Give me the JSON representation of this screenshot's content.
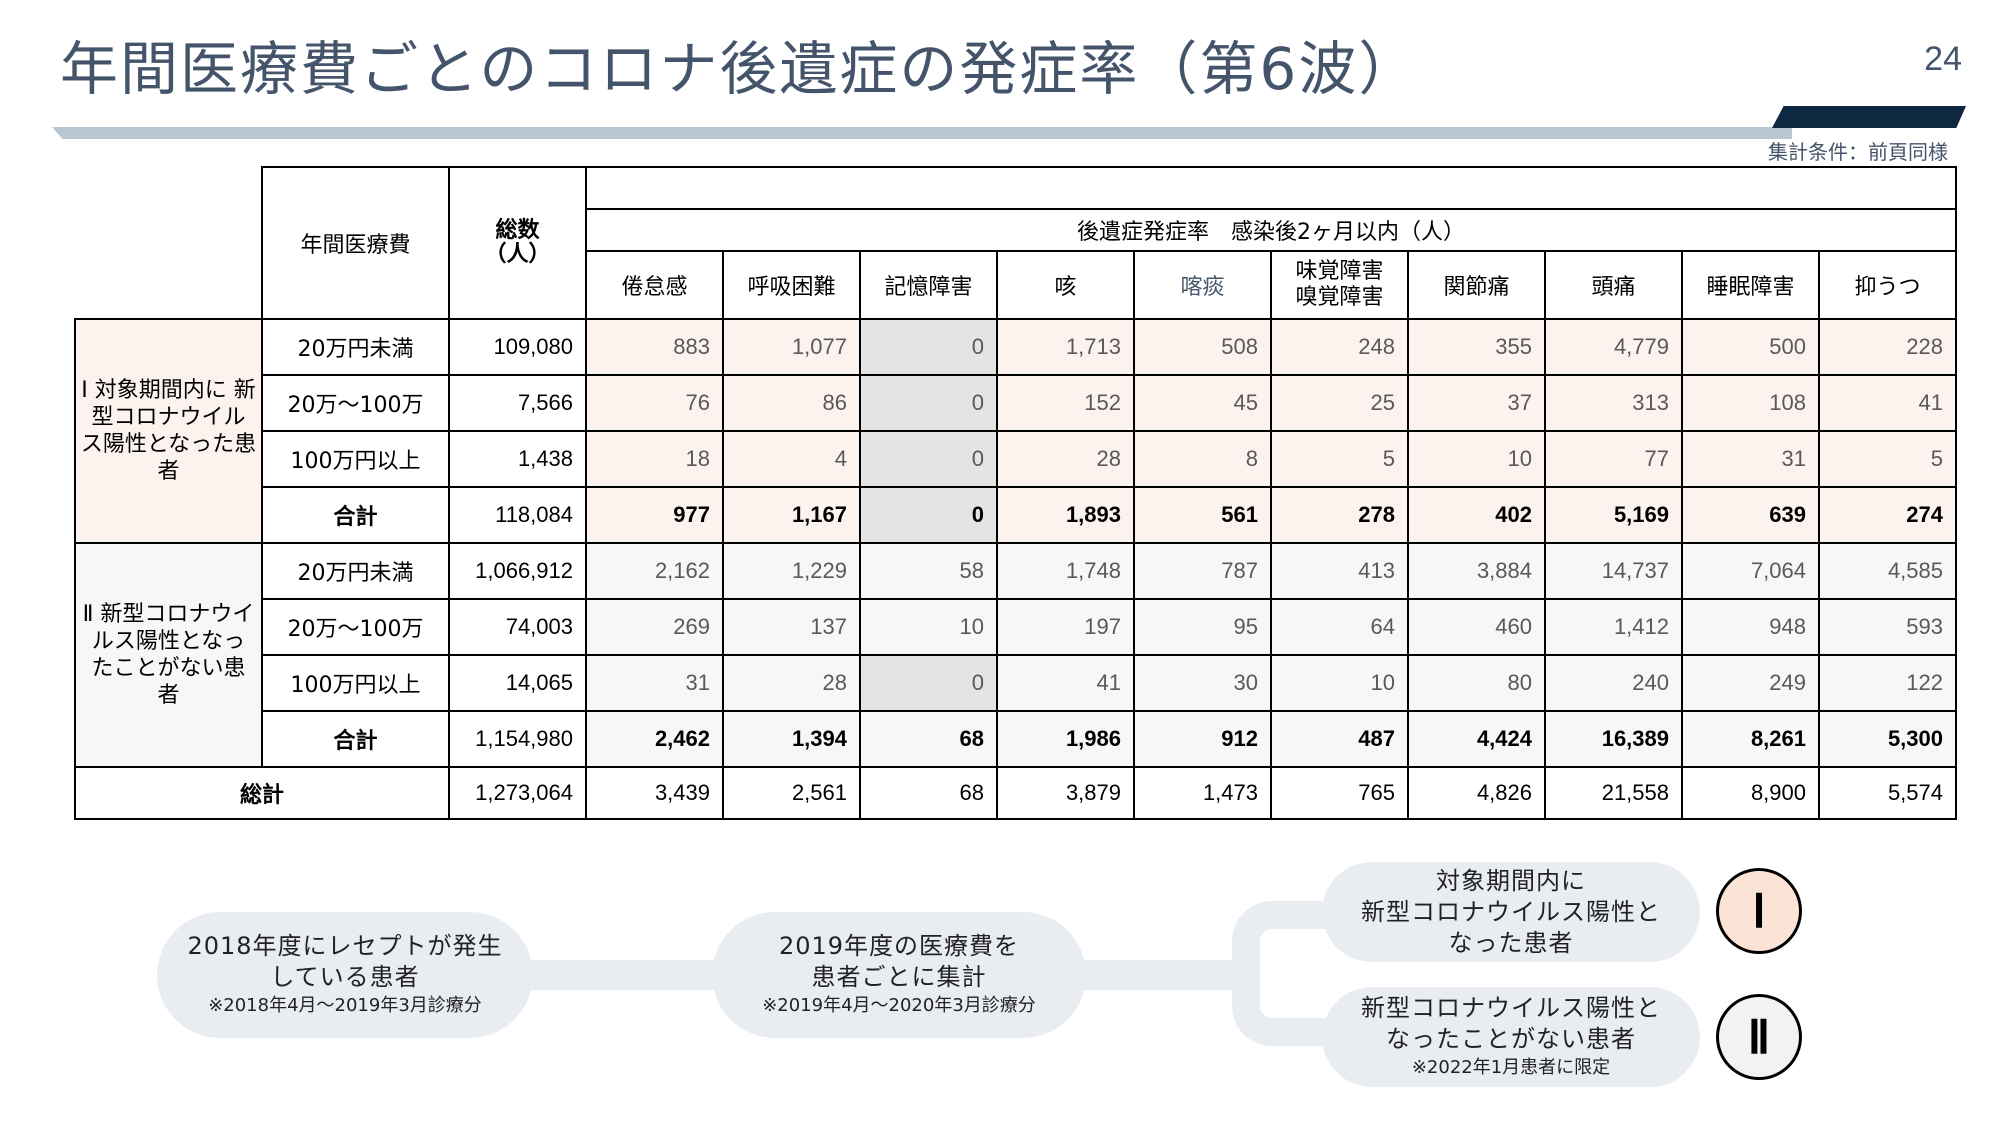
{
  "page": {
    "title": "年間医療費ごとのコロナ後遺症の発症率（第6波）",
    "page_number": "24",
    "condition": "集計条件：前頁同様"
  },
  "table": {
    "header": {
      "medical_cost": "年間医療費",
      "total_line1": "総数",
      "total_line2": "（人）",
      "rate_title": "後遺症発症率　感染後2ヶ月以内（人）",
      "symptoms": [
        "倦怠感",
        "呼吸困難",
        "記憶障害",
        "咳",
        "喀痰",
        "味覚障害\n嗅覚障害",
        "関節痛",
        "頭痛",
        "睡眠障害",
        "抑うつ"
      ]
    },
    "groups": [
      {
        "label": "Ⅰ\n対象期間内に\n新型コロナウイル\nス陽性となった患\n者",
        "rows": [
          {
            "category": "20万円未満",
            "total": "109,080",
            "values": [
              "883",
              "1,077",
              "0",
              "1,713",
              "508",
              "248",
              "355",
              "4,779",
              "500",
              "228"
            ]
          },
          {
            "category": "20万～100万",
            "total": "7,566",
            "values": [
              "76",
              "86",
              "0",
              "152",
              "45",
              "25",
              "37",
              "313",
              "108",
              "41"
            ]
          },
          {
            "category": "100万円以上",
            "total": "1,438",
            "values": [
              "18",
              "4",
              "0",
              "28",
              "8",
              "5",
              "10",
              "77",
              "31",
              "5"
            ]
          }
        ],
        "subtotal": {
          "category": "合計",
          "total": "118,084",
          "values": [
            "977",
            "1,167",
            "0",
            "1,893",
            "561",
            "278",
            "402",
            "5,169",
            "639",
            "274"
          ]
        }
      },
      {
        "label": "Ⅱ\n新型コロナウイ\nルス陽性となっ\nたことがない患\n者",
        "rows": [
          {
            "category": "20万円未満",
            "total": "1,066,912",
            "values": [
              "2,162",
              "1,229",
              "58",
              "1,748",
              "787",
              "413",
              "3,884",
              "14,737",
              "7,064",
              "4,585"
            ]
          },
          {
            "category": "20万～100万",
            "total": "74,003",
            "values": [
              "269",
              "137",
              "10",
              "197",
              "95",
              "64",
              "460",
              "1,412",
              "948",
              "593"
            ]
          },
          {
            "category": "100万円以上",
            "total": "14,065",
            "values": [
              "31",
              "28",
              "0",
              "41",
              "30",
              "10",
              "80",
              "240",
              "249",
              "122"
            ]
          }
        ],
        "subtotal": {
          "category": "合計",
          "total": "1,154,980",
          "values": [
            "2,462",
            "1,394",
            "68",
            "1,986",
            "912",
            "487",
            "4,424",
            "16,389",
            "8,261",
            "5,300"
          ]
        }
      }
    ],
    "grand_total": {
      "label": "総計",
      "total": "1,273,064",
      "values": [
        "3,439",
        "2,561",
        "68",
        "3,879",
        "1,473",
        "765",
        "4,826",
        "21,558",
        "8,900",
        "5,574"
      ]
    }
  },
  "flow": {
    "step1": {
      "line1": "2018年度にレセプトが発生",
      "line2": "している患者",
      "note": "※2018年4月～2019年3月診療分"
    },
    "step2": {
      "line1": "2019年度の医療費を",
      "line2": "患者ごとに集計",
      "note": "※2019年4月～2020年3月診療分"
    },
    "branch1": {
      "line1": "対象期間内に",
      "line2": "新型コロナウイルス陽性と",
      "line3": "なった患者",
      "marker": "Ⅰ"
    },
    "branch2": {
      "line1": "新型コロナウイルス陽性と",
      "line2": "なったことがない患者",
      "note": "※2022年1月患者に限定",
      "marker": "Ⅱ"
    }
  },
  "colors": {
    "title": "#44546a",
    "accent_bar": "#0e2841",
    "group1_fill": "#fdf3ee",
    "group2_fill": "#f5f7f9",
    "zero_highlight": "#e4e4e4",
    "marker1_fill": "#fbe3d6",
    "marker2_fill": "#f2f2f2",
    "pill_fill": "#e9edf2"
  }
}
